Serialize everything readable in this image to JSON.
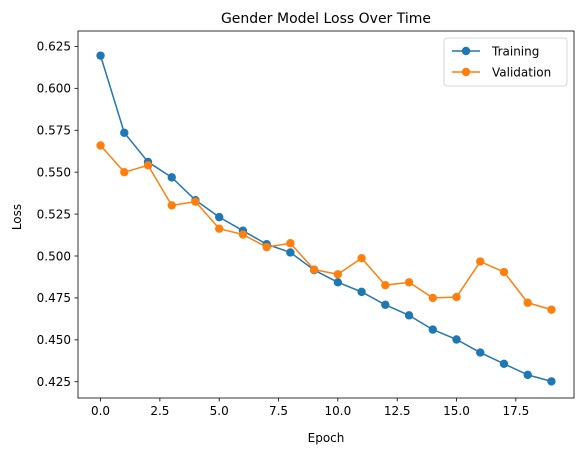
{
  "chart_data": {
    "type": "line",
    "title": "Gender Model Loss Over Time",
    "xlabel": "Epoch",
    "ylabel": "Loss",
    "xlim": [
      -0.95,
      19.95
    ],
    "ylim": [
      0.4153,
      0.6342
    ],
    "x_ticks": [
      0.0,
      2.5,
      5.0,
      7.5,
      10.0,
      12.5,
      15.0,
      17.5
    ],
    "x_tick_labels": [
      "0.0",
      "2.5",
      "5.0",
      "7.5",
      "10.0",
      "12.5",
      "15.0",
      "17.5"
    ],
    "y_ticks": [
      0.425,
      0.45,
      0.475,
      0.5,
      0.525,
      0.55,
      0.575,
      0.6,
      0.625
    ],
    "y_tick_labels": [
      "0.425",
      "0.450",
      "0.475",
      "0.500",
      "0.525",
      "0.550",
      "0.575",
      "0.600",
      "0.625"
    ],
    "grid": false,
    "legend_position": "top-right",
    "x": [
      0,
      1,
      2,
      3,
      4,
      5,
      6,
      7,
      8,
      9,
      10,
      11,
      12,
      13,
      14,
      15,
      16,
      17,
      18,
      19
    ],
    "series": [
      {
        "name": "Training",
        "color": "#1f77b4",
        "marker": "circle",
        "values": [
          0.6195,
          0.5735,
          0.5561,
          0.5469,
          0.5333,
          0.5232,
          0.5151,
          0.507,
          0.5021,
          0.4916,
          0.4843,
          0.4786,
          0.4709,
          0.4646,
          0.4561,
          0.4502,
          0.4424,
          0.4357,
          0.4291,
          0.4252
        ]
      },
      {
        "name": "Validation",
        "color": "#ff7f0e",
        "marker": "circle",
        "values": [
          0.5659,
          0.55,
          0.5541,
          0.5302,
          0.5324,
          0.5163,
          0.5128,
          0.5053,
          0.5076,
          0.4919,
          0.4891,
          0.4987,
          0.4826,
          0.4843,
          0.475,
          0.4755,
          0.4967,
          0.4904,
          0.4721,
          0.468
        ]
      }
    ]
  }
}
